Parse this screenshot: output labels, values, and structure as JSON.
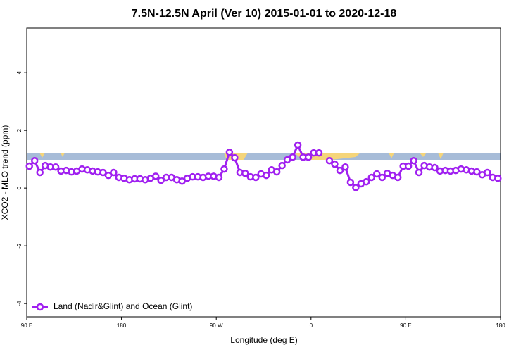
{
  "chart_data": {
    "type": "line",
    "title": "7.5N-12.5N April (Ver 10)   2015-01-01 to 2020-12-18",
    "xlabel": "Longitude (deg E)",
    "ylabel": "XCO2 - MLO trend (ppm)",
    "xlim": [
      90,
      540
    ],
    "ylim": [
      -4.46,
      5.54
    ],
    "xticks": [
      {
        "value": 90,
        "label": "90 E"
      },
      180,
      {
        "value": 270,
        "label": "90 W"
      },
      {
        "value": 360,
        "label": "0"
      },
      {
        "value": 450,
        "label": "90 E"
      },
      {
        "value": 540,
        "label": "180"
      }
    ],
    "yticks": [
      -4,
      -2,
      0,
      2,
      4
    ],
    "legend": "lower left",
    "x": [
      92.5,
      97.5,
      102.5,
      107.5,
      112.5,
      117.5,
      122.5,
      127.5,
      132.5,
      137.5,
      142.5,
      147.5,
      152.5,
      157.5,
      162.5,
      167.5,
      172.5,
      177.5,
      182.5,
      187.5,
      192.5,
      197.5,
      202.5,
      207.5,
      212.5,
      217.5,
      222.5,
      227.5,
      232.5,
      237.5,
      242.5,
      247.5,
      252.5,
      257.5,
      262.5,
      267.5,
      272.5,
      277.5,
      282.5,
      287.5,
      292.5,
      297.5,
      302.5,
      307.5,
      312.5,
      317.5,
      322.5,
      327.5,
      332.5,
      337.5,
      342.5,
      347.5,
      352.5,
      357.5,
      362.5,
      367.5,
      372.5,
      377.5,
      382.5,
      387.5,
      392.5,
      397.5,
      402.5,
      407.5,
      412.5,
      417.5,
      422.5,
      427.5,
      432.5,
      437.5,
      442.5,
      447.5,
      452.5,
      457.5,
      462.5,
      467.5,
      472.5,
      477.5,
      482.5,
      487.5,
      492.5,
      497.5,
      502.5,
      507.5,
      512.5,
      517.5,
      522.5,
      527.5,
      532.5,
      537.5
    ],
    "series": [
      {
        "name": "Land (Nadir&Glint) and Ocean (Glint)",
        "color": "#a020f0",
        "values": [
          0.76,
          0.95,
          0.54,
          0.78,
          0.73,
          0.73,
          0.59,
          0.61,
          0.56,
          0.59,
          0.66,
          0.63,
          0.59,
          0.56,
          0.54,
          0.44,
          0.54,
          0.37,
          0.34,
          0.29,
          0.32,
          0.32,
          0.29,
          0.34,
          0.41,
          0.27,
          0.37,
          0.37,
          0.29,
          0.24,
          0.34,
          0.39,
          0.39,
          0.37,
          0.41,
          0.41,
          0.37,
          0.66,
          1.24,
          1.05,
          0.54,
          0.51,
          0.39,
          0.37,
          0.49,
          0.44,
          0.63,
          0.56,
          0.78,
          0.98,
          1.07,
          1.49,
          1.07,
          1.07,
          1.22,
          1.22,
          null,
          0.95,
          0.83,
          0.61,
          0.73,
          0.2,
          0.02,
          0.15,
          0.22,
          0.37,
          0.49,
          0.37,
          0.51,
          0.44,
          0.37,
          0.76,
          0.76,
          0.95,
          0.54,
          0.78,
          0.73,
          0.71,
          0.59,
          0.61,
          0.59,
          0.61,
          0.66,
          0.63,
          0.59,
          0.56,
          0.46,
          0.54,
          0.37,
          0.34
        ]
      }
    ]
  }
}
